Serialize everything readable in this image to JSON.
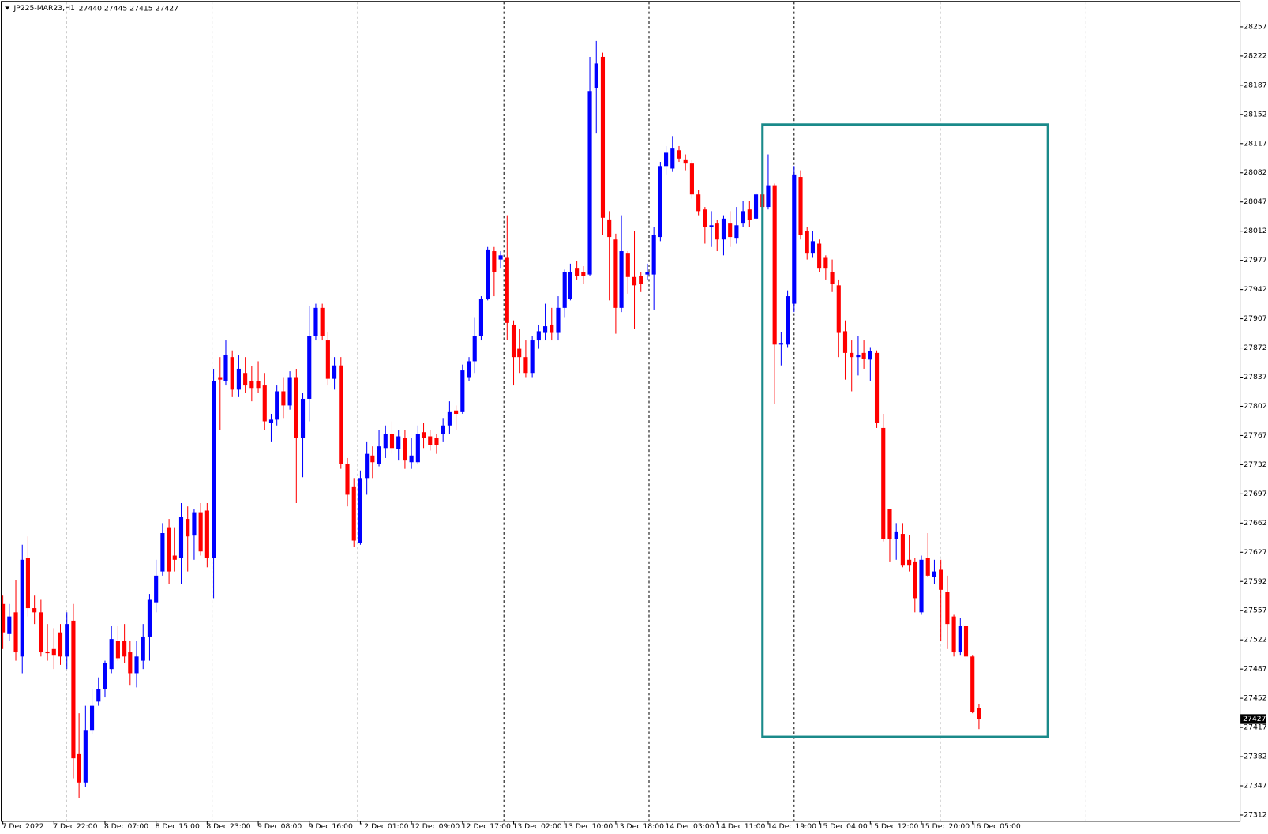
{
  "chart_data": {
    "type": "candlestick",
    "title": "JP225-MAR23,H1",
    "up_color": "#0000ff",
    "down_color": "#ff0000",
    "ylim": [
      27305,
      28287
    ],
    "yticks": [
      28257,
      28222,
      28187,
      28152,
      28117,
      28082,
      28047,
      28012,
      27977,
      27942,
      27907,
      27872,
      27837,
      27802,
      27767,
      27732,
      27697,
      27662,
      27627,
      27592,
      27557,
      27522,
      27487,
      27452,
      27417,
      27382,
      27347,
      27312
    ],
    "categories": [
      "7 Dec 2022",
      null,
      null,
      null,
      null,
      null,
      null,
      null,
      "7 Dec 22:00",
      null,
      null,
      null,
      null,
      null,
      null,
      null,
      "8 Dec 07:00",
      null,
      null,
      null,
      null,
      null,
      null,
      null,
      "8 Dec 15:00",
      null,
      null,
      null,
      null,
      null,
      null,
      null,
      "8 Dec 23:00",
      null,
      null,
      null,
      null,
      null,
      null,
      null,
      "9 Dec 08:00",
      null,
      null,
      null,
      null,
      null,
      null,
      null,
      "9 Dec 16:00",
      null,
      null,
      null,
      null,
      null,
      null,
      null,
      "12 Dec 01:00",
      null,
      null,
      null,
      null,
      null,
      null,
      null,
      "12 Dec 09:00",
      null,
      null,
      null,
      null,
      null,
      null,
      null,
      "12 Dec 17:00",
      null,
      null,
      null,
      null,
      null,
      null,
      null,
      "13 Dec 02:00",
      null,
      null,
      null,
      null,
      null,
      null,
      null,
      "13 Dec 10:00",
      null,
      null,
      null,
      null,
      null,
      null,
      null,
      "13 Dec 18:00",
      null,
      null,
      null,
      null,
      null,
      null,
      null,
      "14 Dec 03:00",
      null,
      null,
      null,
      null,
      null,
      null,
      null,
      "14 Dec 11:00",
      null,
      null,
      null,
      null,
      null,
      null,
      null,
      "14 Dec 19:00",
      null,
      null,
      null,
      null,
      null,
      null,
      null,
      "15 Dec 04:00",
      null,
      null,
      null,
      null,
      null,
      null,
      null,
      "15 Dec 12:00",
      null,
      null,
      null,
      null,
      null,
      null,
      null,
      "15 Dec 20:00",
      null,
      null,
      null,
      null,
      null,
      null,
      null,
      "16 Dec 05:00",
      null
    ],
    "open": [
      27565,
      27529,
      27555,
      27502,
      27620,
      27560,
      27555,
      27508,
      27511,
      27531,
      27502,
      27545,
      27385,
      27351,
      27414,
      27448,
      27463,
      27487,
      27521,
      27521,
      27507,
      27482,
      27497,
      27526,
      27567,
      27604,
      27657,
      27623,
      27620,
      27667,
      27647,
      27675,
      27677,
      27620,
      27837,
      27832,
      27861,
      27822,
      27842,
      27832,
      27832,
      27827,
      27782,
      27786,
      27820,
      27803,
      27837,
      27764,
      27811,
      27886,
      27920,
      27881,
      27835,
      27851,
      27733,
      27706,
      27638,
      27716,
      27743,
      27733,
      27752,
      27769,
      27751,
      27764,
      27735,
      27735,
      27771,
      27766,
      27764,
      27769,
      27779,
      27797,
      27795,
      27837,
      27856,
      27886,
      27931,
      27988,
      27978,
      27980,
      27900,
      27871,
      27861,
      27842,
      27881,
      27890,
      27900,
      27890,
      27920,
      27931,
      27968,
      27963,
      27960,
      28184,
      28221,
      28026,
      28002,
      27920,
      27986,
      27957,
      27958,
      27960,
      27960,
      28005,
      28090,
      28087,
      28109,
      28098,
      28093,
      28056,
      28038,
      28017,
      28022,
      28002,
      28022,
      28004,
      28022,
      28038,
      28027,
      28056,
      28041,
      28067,
      27876,
      27876,
      27925,
      28077,
      28012,
      27986,
      27997,
      27980,
      27963,
      27947,
      27892,
      27866,
      27861,
      27866,
      27858,
      27866,
      27776,
      27679,
      27643,
      27649,
      27618,
      27616,
      27555,
      27620,
      27597,
      27606,
      27579,
      27550,
      27507,
      27539,
      27502,
      27440
    ],
    "high": [
      27575,
      27565,
      27594,
      27636,
      27646,
      27575,
      27570,
      27541,
      27536,
      27541,
      27555,
      27565,
      27434,
      27443,
      27463,
      27477,
      27497,
      27539,
      27539,
      27541,
      27521,
      27521,
      27541,
      27577,
      27618,
      27662,
      27667,
      27657,
      27686,
      27682,
      27679,
      27686,
      27686,
      27847,
      27861,
      27881,
      27869,
      27863,
      27861,
      27850,
      27856,
      27842,
      27793,
      27827,
      27837,
      27844,
      27847,
      27818,
      27922,
      27925,
      27925,
      27891,
      27861,
      27861,
      27740,
      27716,
      27725,
      27759,
      27754,
      27774,
      27779,
      27784,
      27774,
      27774,
      27764,
      27779,
      27782,
      27774,
      27769,
      27788,
      27808,
      27803,
      27852,
      27861,
      27908,
      27934,
      27993,
      27993,
      27988,
      28031,
      27905,
      27895,
      27881,
      27886,
      27900,
      27925,
      27920,
      27934,
      27966,
      27973,
      27976,
      27970,
      28221,
      28240,
      28226,
      28036,
      28009,
      28031,
      27988,
      28012,
      27963,
      27973,
      28017,
      28095,
      28114,
      28126,
      28114,
      28104,
      28097,
      28061,
      28041,
      28036,
      28025,
      28031,
      28036,
      28041,
      28048,
      28048,
      28058,
      28058,
      28104,
      28069,
      27891,
      27941,
      28090,
      28085,
      28017,
      28012,
      28002,
      27983,
      27978,
      27954,
      27905,
      27881,
      27886,
      27881,
      27873,
      27869,
      27793,
      27679,
      27662,
      27662,
      27648,
      27620,
      27623,
      27650,
      27618,
      27618,
      27599,
      27552,
      27548,
      27541,
      27504,
      27445
    ],
    "low": [
      27511,
      27521,
      27497,
      27482,
      27550,
      27541,
      27502,
      27497,
      27487,
      27492,
      27487,
      27356,
      27332,
      27346,
      27409,
      27443,
      27453,
      27482,
      27497,
      27494,
      27468,
      27465,
      27487,
      27497,
      27555,
      27599,
      27589,
      27604,
      27589,
      27604,
      27618,
      27623,
      27609,
      27572,
      27774,
      27827,
      27813,
      27813,
      27818,
      27808,
      27818,
      27774,
      27759,
      27779,
      27788,
      27798,
      27686,
      27717,
      27784,
      27881,
      27881,
      27827,
      27822,
      27727,
      27682,
      27633,
      27636,
      27696,
      27716,
      27730,
      27740,
      27745,
      27737,
      27727,
      27727,
      27733,
      27752,
      27749,
      27745,
      27759,
      27769,
      27774,
      27793,
      27832,
      27842,
      27881,
      27929,
      27934,
      27968,
      27881,
      27827,
      27842,
      27837,
      27837,
      27871,
      27881,
      27881,
      27881,
      27908,
      27929,
      27954,
      27949,
      27958,
      28129,
      28007,
      27929,
      27889,
      27915,
      27937,
      27895,
      27939,
      27954,
      27918,
      28000,
      28080,
      28083,
      28095,
      28085,
      28051,
      28031,
      27997,
      27993,
      27988,
      27983,
      27993,
      27997,
      28017,
      28017,
      28025,
      28036,
      28038,
      27805,
      27851,
      27873,
      27915,
      28002,
      27978,
      27980,
      27963,
      27954,
      27939,
      27861,
      27834,
      27820,
      27839,
      27847,
      27832,
      27776,
      27640,
      27616,
      27618,
      27609,
      27604,
      27555,
      27552,
      27597,
      27589,
      27521,
      27511,
      27502,
      27504,
      27497,
      27434,
      27415
    ],
    "close": [
      27531,
      27550,
      27507,
      27618,
      27560,
      27555,
      27507,
      27506,
      27504,
      27502,
      27541,
      27380,
      27351,
      27414,
      27443,
      27463,
      27494,
      27523,
      27500,
      27502,
      27482,
      27502,
      27526,
      27570,
      27599,
      27650,
      27604,
      27618,
      27669,
      27646,
      27675,
      27628,
      27620,
      27832,
      27834,
      27864,
      27822,
      27847,
      27827,
      27824,
      27824,
      27784,
      27786,
      27820,
      27803,
      27837,
      27764,
      27811,
      27886,
      27920,
      27886,
      27835,
      27851,
      27733,
      27696,
      27641,
      27716,
      27745,
      27735,
      27754,
      27769,
      27752,
      27766,
      27737,
      27743,
      27769,
      27764,
      27756,
      27756,
      27779,
      27795,
      27793,
      27845,
      27856,
      27886,
      27931,
      27990,
      27963,
      27983,
      27902,
      27861,
      27861,
      27842,
      27881,
      27892,
      27898,
      27890,
      27920,
      27963,
      27963,
      27958,
      27958,
      28180,
      28213,
      28028,
      28005,
      27920,
      27988,
      27957,
      27947,
      27949,
      27963,
      28007,
      28090,
      28106,
      28111,
      28099,
      28093,
      28056,
      28036,
      28017,
      28019,
      28002,
      28027,
      28005,
      28019,
      28036,
      28025,
      28056,
      28041,
      28067,
      27876,
      27878,
      27934,
      28080,
      28007,
      27986,
      28000,
      27968,
      27968,
      27949,
      27890,
      27866,
      27861,
      27864,
      27859,
      27868,
      27782,
      27643,
      27643,
      27652,
      27611,
      27611,
      27572,
      27618,
      27599,
      27604,
      27582,
      27541,
      27507,
      27539,
      27502,
      27436,
      27427
    ]
  }
}
